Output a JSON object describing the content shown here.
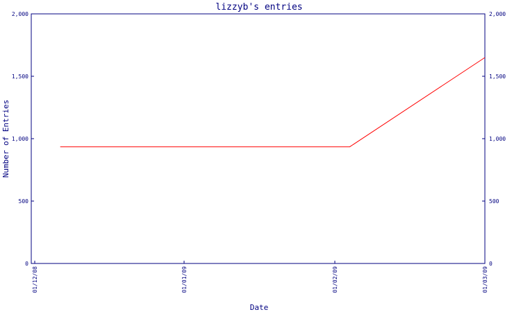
{
  "chart_data": {
    "type": "line",
    "title": "lizzyb's entries",
    "xlabel": "Date",
    "ylabel": "Number of Entries",
    "ylim": [
      0,
      2000
    ],
    "y_ticks": [
      "0",
      "500",
      "1,000",
      "1,500",
      "2,000"
    ],
    "y_tick_values": [
      0,
      500,
      1000,
      1500,
      2000
    ],
    "x_ticks": [
      "01/12/08",
      "01/01/09",
      "01/02/09",
      "01/03/09"
    ],
    "series": [
      {
        "color": "#ff0000",
        "points": [
          {
            "x": "2008-12-03",
            "y": 935
          },
          {
            "x": "2009-02-01",
            "y": 935
          },
          {
            "x": "2009-03-01",
            "y": 1650
          }
        ]
      }
    ],
    "axis_color": "#000080",
    "grid": false
  }
}
